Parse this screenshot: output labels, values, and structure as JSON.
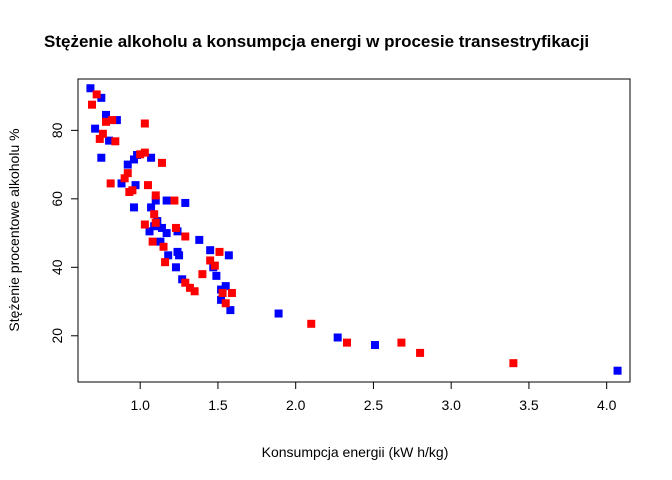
{
  "chart_data": {
    "type": "scatter",
    "title": "Stężenie alkoholu a konsumpcja energi w procesie transestryfikacji",
    "xlabel": "Konsumpcja energii (kW h/kg)",
    "ylabel": "Stężenie procentowe alkoholu %",
    "xlim": [
      0.6,
      4.15
    ],
    "ylim": [
      6.5,
      95
    ],
    "x_ticks": [
      1.0,
      1.5,
      2.0,
      2.5,
      3.0,
      3.5,
      4.0
    ],
    "x_tick_labels": [
      "1.0",
      "1.5",
      "2.0",
      "2.5",
      "3.0",
      "3.5",
      "4.0"
    ],
    "y_ticks": [
      20,
      40,
      60,
      80
    ],
    "y_tick_labels": [
      "20",
      "40",
      "60",
      "80"
    ],
    "grid": false,
    "legend": "none",
    "series": [
      {
        "color": "#0000ff",
        "points": [
          [
            0.68,
            92.3
          ],
          [
            0.75,
            89.5
          ],
          [
            0.71,
            80.5
          ],
          [
            0.78,
            84.5
          ],
          [
            0.85,
            83.0
          ],
          [
            0.8,
            77.0
          ],
          [
            0.75,
            72.0
          ],
          [
            0.88,
            64.5
          ],
          [
            0.92,
            70.0
          ],
          [
            0.96,
            71.5
          ],
          [
            0.98,
            72.8
          ],
          [
            0.97,
            64.0
          ],
          [
            0.96,
            57.5
          ],
          [
            1.07,
            72.0
          ],
          [
            1.1,
            59.5
          ],
          [
            1.17,
            59.5
          ],
          [
            1.07,
            57.5
          ],
          [
            1.11,
            53.5
          ],
          [
            1.06,
            50.5
          ],
          [
            1.09,
            52.0
          ],
          [
            1.14,
            51.5
          ],
          [
            1.13,
            47.5
          ],
          [
            1.18,
            43.5
          ],
          [
            1.17,
            50.0
          ],
          [
            1.24,
            50.5
          ],
          [
            1.23,
            40.0
          ],
          [
            1.24,
            44.5
          ],
          [
            1.25,
            43.5
          ],
          [
            1.27,
            36.5
          ],
          [
            1.29,
            58.8
          ],
          [
            1.38,
            48.0
          ],
          [
            1.45,
            45.0
          ],
          [
            1.47,
            40.0
          ],
          [
            1.49,
            37.5
          ],
          [
            1.52,
            33.5
          ],
          [
            1.52,
            30.5
          ],
          [
            1.55,
            34.5
          ],
          [
            1.57,
            43.5
          ],
          [
            1.58,
            27.5
          ],
          [
            1.89,
            26.5
          ],
          [
            2.27,
            19.5
          ],
          [
            2.51,
            17.3
          ],
          [
            4.07,
            9.8
          ]
        ]
      },
      {
        "color": "#ff0000",
        "points": [
          [
            0.69,
            87.5
          ],
          [
            0.72,
            90.5
          ],
          [
            0.74,
            77.5
          ],
          [
            0.76,
            79.0
          ],
          [
            0.78,
            82.5
          ],
          [
            0.82,
            83.0
          ],
          [
            0.84,
            76.8
          ],
          [
            0.81,
            64.5
          ],
          [
            0.9,
            66.0
          ],
          [
            0.92,
            67.5
          ],
          [
            0.93,
            62.0
          ],
          [
            0.95,
            62.5
          ],
          [
            1.0,
            73.0
          ],
          [
            1.03,
            73.5
          ],
          [
            1.03,
            82.0
          ],
          [
            1.03,
            52.5
          ],
          [
            1.05,
            64.0
          ],
          [
            1.09,
            55.5
          ],
          [
            1.1,
            53.0
          ],
          [
            1.08,
            47.5
          ],
          [
            1.1,
            61.0
          ],
          [
            1.14,
            70.5
          ],
          [
            1.15,
            46.0
          ],
          [
            1.16,
            41.5
          ],
          [
            1.22,
            59.5
          ],
          [
            1.23,
            51.5
          ],
          [
            1.29,
            49.0
          ],
          [
            1.29,
            35.5
          ],
          [
            1.32,
            34.0
          ],
          [
            1.35,
            33.0
          ],
          [
            1.4,
            38.0
          ],
          [
            1.45,
            42.0
          ],
          [
            1.48,
            40.5
          ],
          [
            1.51,
            44.5
          ],
          [
            1.53,
            32.5
          ],
          [
            1.55,
            29.5
          ],
          [
            1.59,
            32.5
          ],
          [
            2.1,
            23.5
          ],
          [
            2.33,
            18.0
          ],
          [
            2.68,
            18.0
          ],
          [
            2.8,
            15.0
          ],
          [
            3.4,
            12.0
          ]
        ]
      }
    ]
  }
}
